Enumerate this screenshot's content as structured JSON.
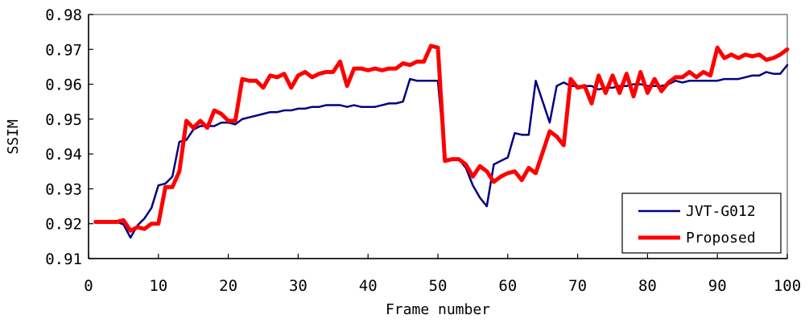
{
  "chart_data": {
    "type": "line",
    "title": "",
    "xlabel": "Frame number",
    "ylabel": "SSIM",
    "xlim": [
      0,
      100
    ],
    "ylim": [
      0.91,
      0.98
    ],
    "xticks": [
      0,
      10,
      20,
      30,
      40,
      50,
      60,
      70,
      80,
      90,
      100
    ],
    "xtick_labels": [
      "0",
      "10",
      "20",
      "30",
      "40",
      "50",
      "60",
      "70",
      "80",
      "90",
      "100"
    ],
    "yticks": [
      0.91,
      0.92,
      0.93,
      0.94,
      0.95,
      0.96,
      0.97,
      0.98
    ],
    "ytick_labels": [
      "0.91",
      "0.92",
      "0.93",
      "0.94",
      "0.95",
      "0.96",
      "0.97",
      "0.98"
    ],
    "grid": false,
    "legend": "bottom-right",
    "series": [
      {
        "name": "JVT-G012",
        "color": "#000080",
        "points": [
          [
            1,
            0.9205
          ],
          [
            2,
            0.9205
          ],
          [
            3,
            0.9205
          ],
          [
            4,
            0.9205
          ],
          [
            5,
            0.9198
          ],
          [
            6,
            0.916
          ],
          [
            7,
            0.9195
          ],
          [
            8,
            0.9215
          ],
          [
            9,
            0.9245
          ],
          [
            10,
            0.931
          ],
          [
            11,
            0.9315
          ],
          [
            12,
            0.9335
          ],
          [
            13,
            0.9435
          ],
          [
            14,
            0.944
          ],
          [
            15,
            0.947
          ],
          [
            16,
            0.948
          ],
          [
            17,
            0.948
          ],
          [
            18,
            0.948
          ],
          [
            19,
            0.949
          ],
          [
            20,
            0.949
          ],
          [
            21,
            0.9485
          ],
          [
            22,
            0.95
          ],
          [
            23,
            0.9505
          ],
          [
            24,
            0.951
          ],
          [
            25,
            0.9515
          ],
          [
            26,
            0.952
          ],
          [
            27,
            0.952
          ],
          [
            28,
            0.9525
          ],
          [
            29,
            0.9525
          ],
          [
            30,
            0.953
          ],
          [
            31,
            0.953
          ],
          [
            32,
            0.9535
          ],
          [
            33,
            0.9535
          ],
          [
            34,
            0.954
          ],
          [
            35,
            0.954
          ],
          [
            36,
            0.954
          ],
          [
            37,
            0.9535
          ],
          [
            38,
            0.954
          ],
          [
            39,
            0.9535
          ],
          [
            40,
            0.9535
          ],
          [
            41,
            0.9535
          ],
          [
            42,
            0.954
          ],
          [
            43,
            0.9545
          ],
          [
            44,
            0.9545
          ],
          [
            45,
            0.955
          ],
          [
            46,
            0.9615
          ],
          [
            47,
            0.961
          ],
          [
            48,
            0.961
          ],
          [
            49,
            0.961
          ],
          [
            50,
            0.961
          ],
          [
            51,
            0.9385
          ],
          [
            52,
            0.9385
          ],
          [
            53,
            0.9385
          ],
          [
            54,
            0.936
          ],
          [
            55,
            0.931
          ],
          [
            56,
            0.9275
          ],
          [
            57,
            0.925
          ],
          [
            58,
            0.937
          ],
          [
            59,
            0.938
          ],
          [
            60,
            0.939
          ],
          [
            61,
            0.946
          ],
          [
            62,
            0.9455
          ],
          [
            63,
            0.9455
          ],
          [
            64,
            0.961
          ],
          [
            65,
            0.955
          ],
          [
            66,
            0.949
          ],
          [
            67,
            0.9595
          ],
          [
            68,
            0.9605
          ],
          [
            69,
            0.9595
          ],
          [
            70,
            0.9595
          ],
          [
            71,
            0.9595
          ],
          [
            72,
            0.9595
          ],
          [
            73,
            0.9585
          ],
          [
            74,
            0.959
          ],
          [
            75,
            0.959
          ],
          [
            76,
            0.9595
          ],
          [
            77,
            0.9595
          ],
          [
            78,
            0.96
          ],
          [
            79,
            0.96
          ],
          [
            80,
            0.9595
          ],
          [
            81,
            0.9595
          ],
          [
            82,
            0.9595
          ],
          [
            83,
            0.96
          ],
          [
            84,
            0.961
          ],
          [
            85,
            0.9605
          ],
          [
            86,
            0.961
          ],
          [
            87,
            0.961
          ],
          [
            88,
            0.961
          ],
          [
            89,
            0.961
          ],
          [
            90,
            0.961
          ],
          [
            91,
            0.9615
          ],
          [
            92,
            0.9615
          ],
          [
            93,
            0.9615
          ],
          [
            94,
            0.962
          ],
          [
            95,
            0.9625
          ],
          [
            96,
            0.9625
          ],
          [
            97,
            0.9635
          ],
          [
            98,
            0.963
          ],
          [
            99,
            0.963
          ],
          [
            100,
            0.9655
          ]
        ]
      },
      {
        "name": "Proposed",
        "color": "#ff0000",
        "points": [
          [
            1,
            0.9205
          ],
          [
            2,
            0.9205
          ],
          [
            3,
            0.9205
          ],
          [
            4,
            0.9205
          ],
          [
            5,
            0.921
          ],
          [
            6,
            0.918
          ],
          [
            7,
            0.919
          ],
          [
            8,
            0.9185
          ],
          [
            9,
            0.92
          ],
          [
            10,
            0.92
          ],
          [
            11,
            0.9305
          ],
          [
            12,
            0.9305
          ],
          [
            13,
            0.935
          ],
          [
            14,
            0.9495
          ],
          [
            15,
            0.9475
          ],
          [
            16,
            0.9495
          ],
          [
            17,
            0.9475
          ],
          [
            18,
            0.9525
          ],
          [
            19,
            0.9515
          ],
          [
            20,
            0.9495
          ],
          [
            21,
            0.9495
          ],
          [
            22,
            0.9615
          ],
          [
            23,
            0.961
          ],
          [
            24,
            0.961
          ],
          [
            25,
            0.959
          ],
          [
            26,
            0.9625
          ],
          [
            27,
            0.962
          ],
          [
            28,
            0.963
          ],
          [
            29,
            0.959
          ],
          [
            30,
            0.9625
          ],
          [
            31,
            0.9635
          ],
          [
            32,
            0.962
          ],
          [
            33,
            0.963
          ],
          [
            34,
            0.9635
          ],
          [
            35,
            0.9635
          ],
          [
            36,
            0.9665
          ],
          [
            37,
            0.9595
          ],
          [
            38,
            0.9645
          ],
          [
            39,
            0.9645
          ],
          [
            40,
            0.964
          ],
          [
            41,
            0.9645
          ],
          [
            42,
            0.964
          ],
          [
            43,
            0.9645
          ],
          [
            44,
            0.9645
          ],
          [
            45,
            0.966
          ],
          [
            46,
            0.9655
          ],
          [
            47,
            0.9665
          ],
          [
            48,
            0.9665
          ],
          [
            49,
            0.971
          ],
          [
            50,
            0.9705
          ],
          [
            51,
            0.938
          ],
          [
            52,
            0.9385
          ],
          [
            53,
            0.9385
          ],
          [
            54,
            0.937
          ],
          [
            55,
            0.9335
          ],
          [
            56,
            0.9365
          ],
          [
            57,
            0.935
          ],
          [
            58,
            0.932
          ],
          [
            59,
            0.9335
          ],
          [
            60,
            0.9345
          ],
          [
            61,
            0.935
          ],
          [
            62,
            0.9325
          ],
          [
            63,
            0.936
          ],
          [
            64,
            0.9345
          ],
          [
            65,
            0.9405
          ],
          [
            66,
            0.9465
          ],
          [
            67,
            0.945
          ],
          [
            68,
            0.9425
          ],
          [
            69,
            0.9615
          ],
          [
            70,
            0.959
          ],
          [
            71,
            0.9595
          ],
          [
            72,
            0.9545
          ],
          [
            73,
            0.9625
          ],
          [
            74,
            0.9575
          ],
          [
            75,
            0.9625
          ],
          [
            76,
            0.9575
          ],
          [
            77,
            0.963
          ],
          [
            78,
            0.9565
          ],
          [
            79,
            0.9635
          ],
          [
            80,
            0.9575
          ],
          [
            81,
            0.9615
          ],
          [
            82,
            0.958
          ],
          [
            83,
            0.9605
          ],
          [
            84,
            0.962
          ],
          [
            85,
            0.962
          ],
          [
            86,
            0.9635
          ],
          [
            87,
            0.962
          ],
          [
            88,
            0.9635
          ],
          [
            89,
            0.9625
          ],
          [
            90,
            0.9705
          ],
          [
            91,
            0.9675
          ],
          [
            92,
            0.9685
          ],
          [
            93,
            0.9675
          ],
          [
            94,
            0.9685
          ],
          [
            95,
            0.968
          ],
          [
            96,
            0.9685
          ],
          [
            97,
            0.967
          ],
          [
            98,
            0.9675
          ],
          [
            99,
            0.9685
          ],
          [
            100,
            0.97
          ]
        ]
      }
    ]
  }
}
